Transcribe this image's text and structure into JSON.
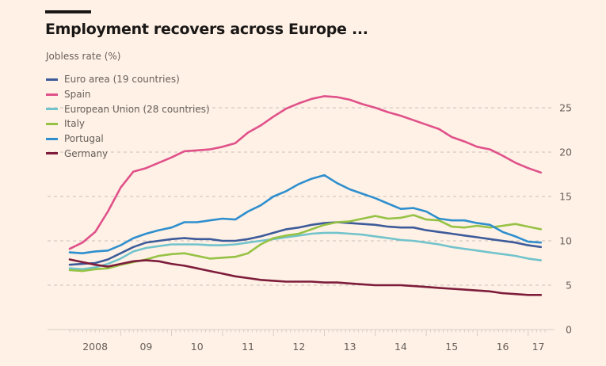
{
  "header": {
    "title": "Employment recovers across Europe ...",
    "subtitle": "Jobless rate (%)"
  },
  "chart_data": {
    "type": "line",
    "title": "Employment recovers across Europe ...",
    "ylabel": "Jobless rate (%)",
    "xlabel": "",
    "xlim": [
      2007.55,
      2017.45
    ],
    "ylim": [
      0,
      27
    ],
    "yticks": [
      0,
      5,
      10,
      15,
      20,
      25
    ],
    "xtick_labels": [
      {
        "label": "2008",
        "x": 2008.5
      },
      {
        "label": "09",
        "x": 2009.5
      },
      {
        "label": "10",
        "x": 2010.5
      },
      {
        "label": "11",
        "x": 2011.5
      },
      {
        "label": "12",
        "x": 2012.5
      },
      {
        "label": "13",
        "x": 2013.5
      },
      {
        "label": "14",
        "x": 2014.5
      },
      {
        "label": "15",
        "x": 2015.5
      },
      {
        "label": "16",
        "x": 2016.5
      },
      {
        "label": "17",
        "x": 2017.2
      }
    ],
    "year_boundaries": [
      2009,
      2010,
      2011,
      2012,
      2013,
      2014,
      2015,
      2016,
      2017
    ],
    "grid": true,
    "legend_position": "top-left",
    "x": [
      2008.0,
      2008.25,
      2008.5,
      2008.75,
      2009.0,
      2009.25,
      2009.5,
      2009.75,
      2010.0,
      2010.25,
      2010.5,
      2010.75,
      2011.0,
      2011.25,
      2011.5,
      2011.75,
      2012.0,
      2012.25,
      2012.5,
      2012.75,
      2013.0,
      2013.25,
      2013.5,
      2013.75,
      2014.0,
      2014.25,
      2014.5,
      2014.75,
      2015.0,
      2015.25,
      2015.5,
      2015.75,
      2016.0,
      2016.25,
      2016.5,
      2016.75,
      2017.0,
      2017.25
    ],
    "series": [
      {
        "name": "Euro area (19 countries)",
        "color": "#3d5b9a",
        "values": [
          7.3,
          7.4,
          7.5,
          7.9,
          8.6,
          9.3,
          9.8,
          10.0,
          10.2,
          10.3,
          10.2,
          10.2,
          10.0,
          10.0,
          10.2,
          10.5,
          10.9,
          11.3,
          11.5,
          11.8,
          12.0,
          12.1,
          12.0,
          11.9,
          11.8,
          11.6,
          11.5,
          11.5,
          11.2,
          11.0,
          10.8,
          10.6,
          10.4,
          10.2,
          10.0,
          9.8,
          9.5,
          9.3
        ]
      },
      {
        "name": "Spain",
        "color": "#e0518a",
        "values": [
          9.1,
          9.8,
          11.0,
          13.3,
          16.0,
          17.8,
          18.2,
          18.8,
          19.4,
          20.1,
          20.2,
          20.3,
          20.6,
          21.0,
          22.2,
          23.0,
          24.0,
          24.9,
          25.5,
          26.0,
          26.3,
          26.2,
          25.9,
          25.4,
          25.0,
          24.5,
          24.1,
          23.6,
          23.1,
          22.6,
          21.7,
          21.2,
          20.6,
          20.3,
          19.6,
          18.8,
          18.2,
          17.7
        ]
      },
      {
        "name": "European Union (28 countries)",
        "color": "#72c3cc",
        "values": [
          6.9,
          6.8,
          7.0,
          7.4,
          8.0,
          8.8,
          9.2,
          9.4,
          9.6,
          9.6,
          9.6,
          9.5,
          9.5,
          9.6,
          9.8,
          10.0,
          10.2,
          10.4,
          10.6,
          10.8,
          10.9,
          10.9,
          10.8,
          10.7,
          10.5,
          10.3,
          10.1,
          10.0,
          9.8,
          9.6,
          9.3,
          9.1,
          8.9,
          8.7,
          8.5,
          8.3,
          8.0,
          7.8
        ]
      },
      {
        "name": "Italy",
        "color": "#96c245",
        "values": [
          6.7,
          6.6,
          6.8,
          6.9,
          7.3,
          7.6,
          7.9,
          8.3,
          8.5,
          8.6,
          8.3,
          8.0,
          8.1,
          8.2,
          8.6,
          9.6,
          10.3,
          10.6,
          10.8,
          11.3,
          11.8,
          12.1,
          12.2,
          12.5,
          12.8,
          12.5,
          12.6,
          12.9,
          12.4,
          12.3,
          11.6,
          11.5,
          11.7,
          11.5,
          11.7,
          11.9,
          11.6,
          11.3
        ]
      },
      {
        "name": "Portugal",
        "color": "#2f8fce",
        "values": [
          8.7,
          8.6,
          8.8,
          8.9,
          9.5,
          10.3,
          10.8,
          11.2,
          11.5,
          12.1,
          12.1,
          12.3,
          12.5,
          12.4,
          13.3,
          14.0,
          15.0,
          15.6,
          16.4,
          17.0,
          17.4,
          16.5,
          15.8,
          15.3,
          14.8,
          14.2,
          13.6,
          13.7,
          13.3,
          12.5,
          12.3,
          12.3,
          12.0,
          11.8,
          11.0,
          10.5,
          9.9,
          9.8
        ]
      },
      {
        "name": "Germany",
        "color": "#7d1c3b",
        "values": [
          7.9,
          7.6,
          7.3,
          7.1,
          7.4,
          7.7,
          7.8,
          7.7,
          7.4,
          7.2,
          6.9,
          6.6,
          6.3,
          6.0,
          5.8,
          5.6,
          5.5,
          5.4,
          5.4,
          5.4,
          5.3,
          5.3,
          5.2,
          5.1,
          5.0,
          5.0,
          5.0,
          4.9,
          4.8,
          4.7,
          4.6,
          4.5,
          4.4,
          4.3,
          4.1,
          4.0,
          3.9,
          3.9
        ]
      }
    ]
  }
}
